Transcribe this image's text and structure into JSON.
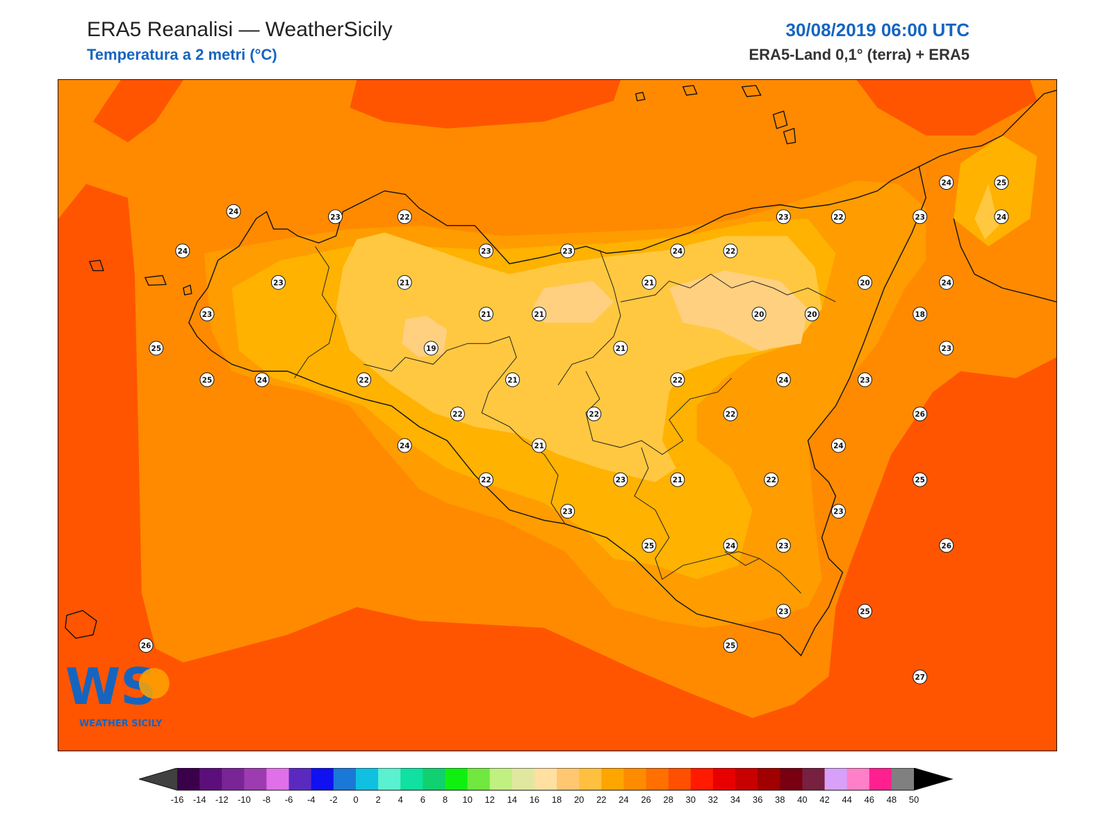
{
  "header": {
    "title_left": "ERA5 Reanalisi — WeatherSicily",
    "subtitle_left": "Temperatura a 2 metri (°C)",
    "title_right": "30/08/2019 06:00 UTC",
    "subtitle_right": "ERA5-Land 0,1° (terra) + ERA5"
  },
  "logo": {
    "letters": "WS",
    "text": "WEATHER SICILY"
  },
  "colors": {
    "t18": "#ffd080",
    "t20": "#ffc84a",
    "t22": "#ffb200",
    "t24": "#ff9c00",
    "t26": "#ff8400",
    "t28": "#ff5500",
    "accent": "#1565c0"
  },
  "stations": [
    {
      "lon": 12.36,
      "lat": 38.25,
      "value": "24"
    },
    {
      "lon": 12.86,
      "lat": 38.23,
      "value": "23"
    },
    {
      "lon": 13.2,
      "lat": 38.23,
      "value": "22"
    },
    {
      "lon": 12.11,
      "lat": 38.1,
      "value": "24"
    },
    {
      "lon": 12.58,
      "lat": 37.98,
      "value": "23"
    },
    {
      "lon": 13.2,
      "lat": 37.98,
      "value": "21"
    },
    {
      "lon": 13.6,
      "lat": 38.1,
      "value": "23"
    },
    {
      "lon": 14.0,
      "lat": 38.1,
      "value": "23"
    },
    {
      "lon": 14.54,
      "lat": 38.1,
      "value": "24"
    },
    {
      "lon": 14.8,
      "lat": 38.1,
      "value": "22"
    },
    {
      "lon": 15.06,
      "lat": 38.23,
      "value": "23"
    },
    {
      "lon": 15.33,
      "lat": 38.23,
      "value": "22"
    },
    {
      "lon": 15.73,
      "lat": 38.23,
      "value": "23"
    },
    {
      "lon": 15.86,
      "lat": 38.36,
      "value": "24"
    },
    {
      "lon": 16.13,
      "lat": 38.36,
      "value": "25"
    },
    {
      "lon": 16.13,
      "lat": 38.23,
      "value": "24"
    },
    {
      "lon": 12.23,
      "lat": 37.86,
      "value": "23"
    },
    {
      "lon": 13.6,
      "lat": 37.86,
      "value": "21"
    },
    {
      "lon": 13.86,
      "lat": 37.86,
      "value": "21"
    },
    {
      "lon": 14.4,
      "lat": 37.98,
      "value": "21"
    },
    {
      "lon": 14.94,
      "lat": 37.86,
      "value": "20"
    },
    {
      "lon": 15.2,
      "lat": 37.86,
      "value": "20"
    },
    {
      "lon": 15.46,
      "lat": 37.98,
      "value": "20"
    },
    {
      "lon": 15.73,
      "lat": 37.86,
      "value": "18"
    },
    {
      "lon": 15.86,
      "lat": 37.98,
      "value": "24"
    },
    {
      "lon": 11.98,
      "lat": 37.73,
      "value": "25"
    },
    {
      "lon": 13.33,
      "lat": 37.73,
      "value": "19"
    },
    {
      "lon": 14.26,
      "lat": 37.73,
      "value": "21"
    },
    {
      "lon": 15.86,
      "lat": 37.73,
      "value": "23"
    },
    {
      "lon": 12.23,
      "lat": 37.61,
      "value": "25"
    },
    {
      "lon": 12.5,
      "lat": 37.61,
      "value": "24"
    },
    {
      "lon": 13.0,
      "lat": 37.61,
      "value": "22"
    },
    {
      "lon": 13.73,
      "lat": 37.61,
      "value": "21"
    },
    {
      "lon": 14.54,
      "lat": 37.61,
      "value": "22"
    },
    {
      "lon": 15.06,
      "lat": 37.61,
      "value": "24"
    },
    {
      "lon": 15.46,
      "lat": 37.61,
      "value": "23"
    },
    {
      "lon": 13.46,
      "lat": 37.48,
      "value": "22"
    },
    {
      "lon": 14.13,
      "lat": 37.48,
      "value": "22"
    },
    {
      "lon": 14.8,
      "lat": 37.48,
      "value": "22"
    },
    {
      "lon": 15.73,
      "lat": 37.48,
      "value": "26"
    },
    {
      "lon": 13.2,
      "lat": 37.36,
      "value": "24"
    },
    {
      "lon": 13.86,
      "lat": 37.36,
      "value": "21"
    },
    {
      "lon": 15.33,
      "lat": 37.36,
      "value": "24"
    },
    {
      "lon": 13.6,
      "lat": 37.23,
      "value": "22"
    },
    {
      "lon": 14.26,
      "lat": 37.23,
      "value": "23"
    },
    {
      "lon": 14.54,
      "lat": 37.23,
      "value": "21"
    },
    {
      "lon": 15.0,
      "lat": 37.23,
      "value": "22"
    },
    {
      "lon": 15.73,
      "lat": 37.23,
      "value": "25"
    },
    {
      "lon": 14.0,
      "lat": 37.11,
      "value": "23"
    },
    {
      "lon": 15.33,
      "lat": 37.11,
      "value": "23"
    },
    {
      "lon": 14.4,
      "lat": 36.98,
      "value": "25"
    },
    {
      "lon": 14.8,
      "lat": 36.98,
      "value": "24"
    },
    {
      "lon": 15.06,
      "lat": 36.98,
      "value": "23"
    },
    {
      "lon": 15.86,
      "lat": 36.98,
      "value": "26"
    },
    {
      "lon": 15.06,
      "lat": 36.73,
      "value": "23"
    },
    {
      "lon": 15.46,
      "lat": 36.73,
      "value": "25"
    },
    {
      "lon": 14.8,
      "lat": 36.6,
      "value": "25"
    },
    {
      "lon": 11.93,
      "lat": 36.6,
      "value": "26"
    },
    {
      "lon": 15.73,
      "lat": 36.48,
      "value": "27"
    }
  ],
  "colorbar": {
    "ticks": [
      "-16",
      "-14",
      "-12",
      "-10",
      "-8",
      "-6",
      "-4",
      "-2",
      "0",
      "2",
      "4",
      "6",
      "8",
      "10",
      "12",
      "14",
      "16",
      "18",
      "20",
      "22",
      "24",
      "26",
      "28",
      "30",
      "32",
      "34",
      "36",
      "38",
      "40",
      "42",
      "44",
      "46",
      "48",
      "50"
    ],
    "colors": [
      "#3a004a",
      "#5c0f7a",
      "#7a2596",
      "#9c3cb0",
      "#e070e8",
      "#5a2ac0",
      "#1010f0",
      "#1a78d6",
      "#10c0e0",
      "#5af0d0",
      "#10e0a0",
      "#10d070",
      "#10f010",
      "#70e840",
      "#c0f080",
      "#e0e8a0",
      "#ffe0a0",
      "#ffc870",
      "#ffc040",
      "#ffa500",
      "#ff8c00",
      "#ff7000",
      "#ff5000",
      "#ff1a00",
      "#e80000",
      "#c80000",
      "#a00000",
      "#780010",
      "#782040",
      "#d8a0f8",
      "#ff80c8",
      "#ff2090",
      "#808080",
      "#3a3a3a"
    ],
    "under_color": "#404040",
    "over_color": "#000000"
  }
}
